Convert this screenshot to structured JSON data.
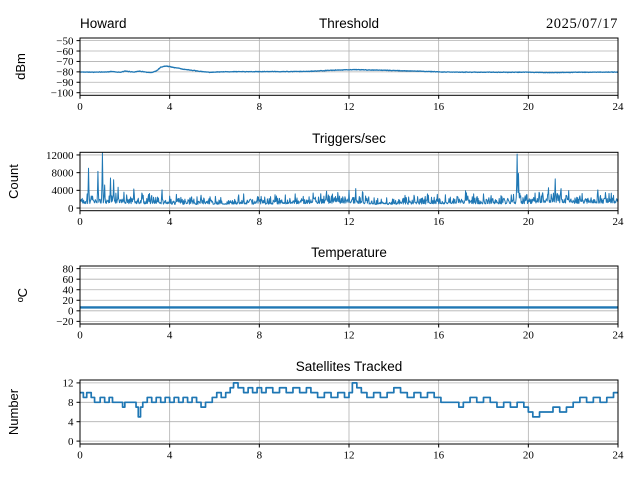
{
  "figure": {
    "background": "#ffffff",
    "accent_color": "#1f77b4",
    "grid_color": "#b0b0b0",
    "spine_color": "#000000",
    "text_color": "#000000"
  },
  "chart_data": [
    {
      "type": "line",
      "title_left": "Howard",
      "title": "Threshold",
      "title_right": "2025/07/17",
      "ylabel": "dBm",
      "xlabel": "",
      "xlim": [
        0,
        24
      ],
      "ylim": [
        -102.5,
        -47.5
      ],
      "grid": true,
      "legend": "none",
      "xticks": [
        0,
        4,
        8,
        12,
        16,
        20,
        24
      ],
      "xtick_labels": [
        "0",
        "4",
        "8",
        "12",
        "16",
        "20",
        "24"
      ],
      "yticks": [
        -50,
        -60,
        -70,
        -80,
        -90,
        -100
      ],
      "ytick_labels": [
        "−50",
        "−60",
        "−70",
        "−80",
        "−90",
        "−100"
      ],
      "series": {
        "name": "signal-level-dbm",
        "type": "noisy_line",
        "color": "#1f77b4",
        "keypoint_x": [
          0,
          0.3,
          0.6,
          0.9,
          1.2,
          1.4,
          1.6,
          1.8,
          2.0,
          2.2,
          2.4,
          2.6,
          2.8,
          3.0,
          3.2,
          3.4,
          3.6,
          3.8,
          4.0,
          4.2,
          4.4,
          4.6,
          4.8,
          5.0,
          5.2,
          5.5,
          5.8,
          6.1,
          6.5,
          7.0,
          7.5,
          8.0,
          8.5,
          9.0,
          9.5,
          10.0,
          10.5,
          11.0,
          11.3,
          11.6,
          12.0,
          12.4,
          12.8,
          13.2,
          13.6,
          14.0,
          14.5,
          15.0,
          15.5,
          16.0,
          16.5,
          17.0,
          18.0,
          19.0,
          20.0,
          20.5,
          21.0,
          21.5,
          22.0,
          22.5,
          23.0,
          23.5,
          24.0
        ],
        "keypoint_y": [
          -80.2,
          -80.1,
          -80.3,
          -80.2,
          -80.1,
          -79.6,
          -80.0,
          -80.5,
          -79.3,
          -79.7,
          -80.2,
          -79.3,
          -79.7,
          -80.6,
          -80.7,
          -79.2,
          -75.6,
          -74.4,
          -74.9,
          -75.9,
          -76.4,
          -77.5,
          -77.9,
          -78.6,
          -79.1,
          -79.9,
          -80.4,
          -80.2,
          -79.9,
          -79.8,
          -79.8,
          -79.8,
          -79.7,
          -79.8,
          -79.7,
          -79.6,
          -79.3,
          -78.7,
          -78.4,
          -78.2,
          -77.9,
          -77.9,
          -78.1,
          -78.3,
          -78.5,
          -78.7,
          -79.0,
          -79.3,
          -79.6,
          -80.0,
          -80.2,
          -80.3,
          -80.3,
          -80.4,
          -80.3,
          -80.5,
          -80.8,
          -80.6,
          -80.4,
          -80.3,
          -80.3,
          -80.2,
          -80.2
        ],
        "noise_amp": 0.35,
        "sample_dx": 0.02,
        "seed": 42
      }
    },
    {
      "type": "line",
      "title": "Triggers/sec",
      "ylabel": "Count",
      "xlabel": "",
      "xlim": [
        0,
        24
      ],
      "ylim": [
        -600,
        12600
      ],
      "grid": true,
      "legend": "none",
      "xticks": [
        0,
        4,
        8,
        12,
        16,
        20,
        24
      ],
      "xtick_labels": [
        "0",
        "4",
        "8",
        "12",
        "16",
        "20",
        "24"
      ],
      "yticks": [
        0,
        4000,
        8000,
        12000
      ],
      "ytick_labels": [
        "0",
        "4000",
        "8000",
        "12000"
      ],
      "series": {
        "name": "triggers-per-sec",
        "type": "spiky_line",
        "color": "#1f77b4",
        "baseline_x": [
          0,
          1,
          2,
          3,
          4,
          5,
          6,
          7,
          8,
          9,
          10,
          11,
          12,
          12.5,
          13,
          14,
          15,
          16,
          17,
          18,
          19,
          20,
          21,
          22,
          23,
          24
        ],
        "baseline_y": [
          1800,
          1900,
          1800,
          1700,
          1500,
          1400,
          1500,
          1600,
          1500,
          1700,
          1800,
          1900,
          2000,
          1900,
          1500,
          1400,
          1600,
          1700,
          1800,
          1700,
          1700,
          1800,
          2300,
          1900,
          1900,
          2000
        ],
        "noise_floor": 0.55,
        "noise_gain": 1.45,
        "sample_dx": 0.02,
        "seed": 1337,
        "spikes": [
          [
            0.37,
            9000
          ],
          [
            0.8,
            8300
          ],
          [
            1.0,
            12450
          ],
          [
            1.1,
            5200
          ],
          [
            1.35,
            6800
          ],
          [
            1.5,
            6400
          ],
          [
            1.7,
            4700
          ],
          [
            1.95,
            3600
          ],
          [
            2.4,
            4300
          ],
          [
            2.75,
            3400
          ],
          [
            3.1,
            3300
          ],
          [
            3.65,
            4100
          ],
          [
            4.3,
            3100
          ],
          [
            5.4,
            2900
          ],
          [
            7.3,
            3200
          ],
          [
            8.7,
            3000
          ],
          [
            9.6,
            3200
          ],
          [
            10.4,
            3400
          ],
          [
            11.0,
            3800
          ],
          [
            11.5,
            3500
          ],
          [
            12.0,
            4000
          ],
          [
            12.3,
            4400
          ],
          [
            12.6,
            3700
          ],
          [
            14.9,
            2900
          ],
          [
            16.3,
            3000
          ],
          [
            17.2,
            3900
          ],
          [
            18.0,
            3200
          ],
          [
            19.5,
            12200
          ],
          [
            19.56,
            7800
          ],
          [
            20.3,
            3400
          ],
          [
            20.9,
            4600
          ],
          [
            21.2,
            6600
          ],
          [
            21.45,
            4400
          ],
          [
            21.8,
            3900
          ],
          [
            22.4,
            3300
          ],
          [
            23.1,
            4100
          ],
          [
            23.6,
            3300
          ]
        ]
      }
    },
    {
      "type": "line",
      "title": "Temperature",
      "ylabel": "ºC",
      "xlabel": "",
      "xlim": [
        0,
        24
      ],
      "ylim": [
        -25,
        85
      ],
      "grid": true,
      "legend": "none",
      "xticks": [
        0,
        4,
        8,
        12,
        16,
        20,
        24
      ],
      "xtick_labels": [
        "0",
        "4",
        "8",
        "12",
        "16",
        "20",
        "24"
      ],
      "yticks": [
        -20,
        0,
        20,
        40,
        60,
        80
      ],
      "ytick_labels": [
        "−20",
        "0",
        "20",
        "40",
        "60",
        "80"
      ],
      "series": {
        "name": "temperature-c",
        "type": "plain_line",
        "color": "#1f77b4",
        "x": [
          0,
          24
        ],
        "y": [
          6.5,
          6.5
        ]
      }
    },
    {
      "type": "line",
      "title": "Satellites Tracked",
      "ylabel": "Number",
      "xlabel": "",
      "xlim": [
        0,
        24
      ],
      "ylim": [
        -0.6,
        12.6
      ],
      "grid": true,
      "legend": "none",
      "xticks": [
        0,
        4,
        8,
        12,
        16,
        20,
        24
      ],
      "xtick_labels": [
        "0",
        "4",
        "8",
        "12",
        "16",
        "20",
        "24"
      ],
      "yticks": [
        0,
        4,
        8,
        12
      ],
      "ytick_labels": [
        "0",
        "4",
        "8",
        "12"
      ],
      "series": {
        "name": "satellites-tracked",
        "type": "step",
        "color": "#1f77b4",
        "x": [
          0,
          0.15,
          0.3,
          0.5,
          0.65,
          0.9,
          1.1,
          1.3,
          1.45,
          1.7,
          1.9,
          2.0,
          2.3,
          2.5,
          2.6,
          2.7,
          2.8,
          3.0,
          3.2,
          3.4,
          3.6,
          3.8,
          4.0,
          4.2,
          4.4,
          4.6,
          4.8,
          5.0,
          5.2,
          5.4,
          5.6,
          5.9,
          6.1,
          6.3,
          6.5,
          6.7,
          6.85,
          7.05,
          7.3,
          7.5,
          7.7,
          7.9,
          8.1,
          8.3,
          8.6,
          8.9,
          9.2,
          9.5,
          9.8,
          10.1,
          10.3,
          10.6,
          10.9,
          11.2,
          11.5,
          11.8,
          12.0,
          12.15,
          12.35,
          12.55,
          12.8,
          13.1,
          13.4,
          13.7,
          14.0,
          14.3,
          14.6,
          14.9,
          15.2,
          15.5,
          15.8,
          16.1,
          16.5,
          16.9,
          17.1,
          17.4,
          17.7,
          18.0,
          18.3,
          18.6,
          18.9,
          19.2,
          19.5,
          19.8,
          20.0,
          20.2,
          20.5,
          20.8,
          21.1,
          21.4,
          21.7,
          22.0,
          22.3,
          22.6,
          22.9,
          23.2,
          23.5,
          23.8,
          24
        ],
        "y": [
          10,
          9,
          10,
          9,
          8,
          9,
          8,
          9,
          8,
          8,
          7,
          8,
          8,
          7,
          5,
          7,
          8,
          9,
          8,
          9,
          8,
          9,
          8,
          9,
          8,
          9,
          8,
          9,
          8,
          7,
          8,
          9,
          10,
          9,
          10,
          11,
          12,
          11,
          10,
          11,
          10,
          11,
          10,
          11,
          10,
          11,
          10,
          11,
          10,
          11,
          10,
          9,
          10,
          9,
          10,
          9,
          10,
          12,
          11,
          10,
          9,
          10,
          9,
          10,
          11,
          10,
          9,
          10,
          9,
          10,
          9,
          8,
          8,
          7,
          8,
          9,
          8,
          9,
          8,
          7,
          8,
          7,
          8,
          7,
          6,
          5,
          6,
          6,
          7,
          6,
          7,
          8,
          9,
          8,
          9,
          8,
          9,
          10,
          10
        ]
      }
    }
  ]
}
